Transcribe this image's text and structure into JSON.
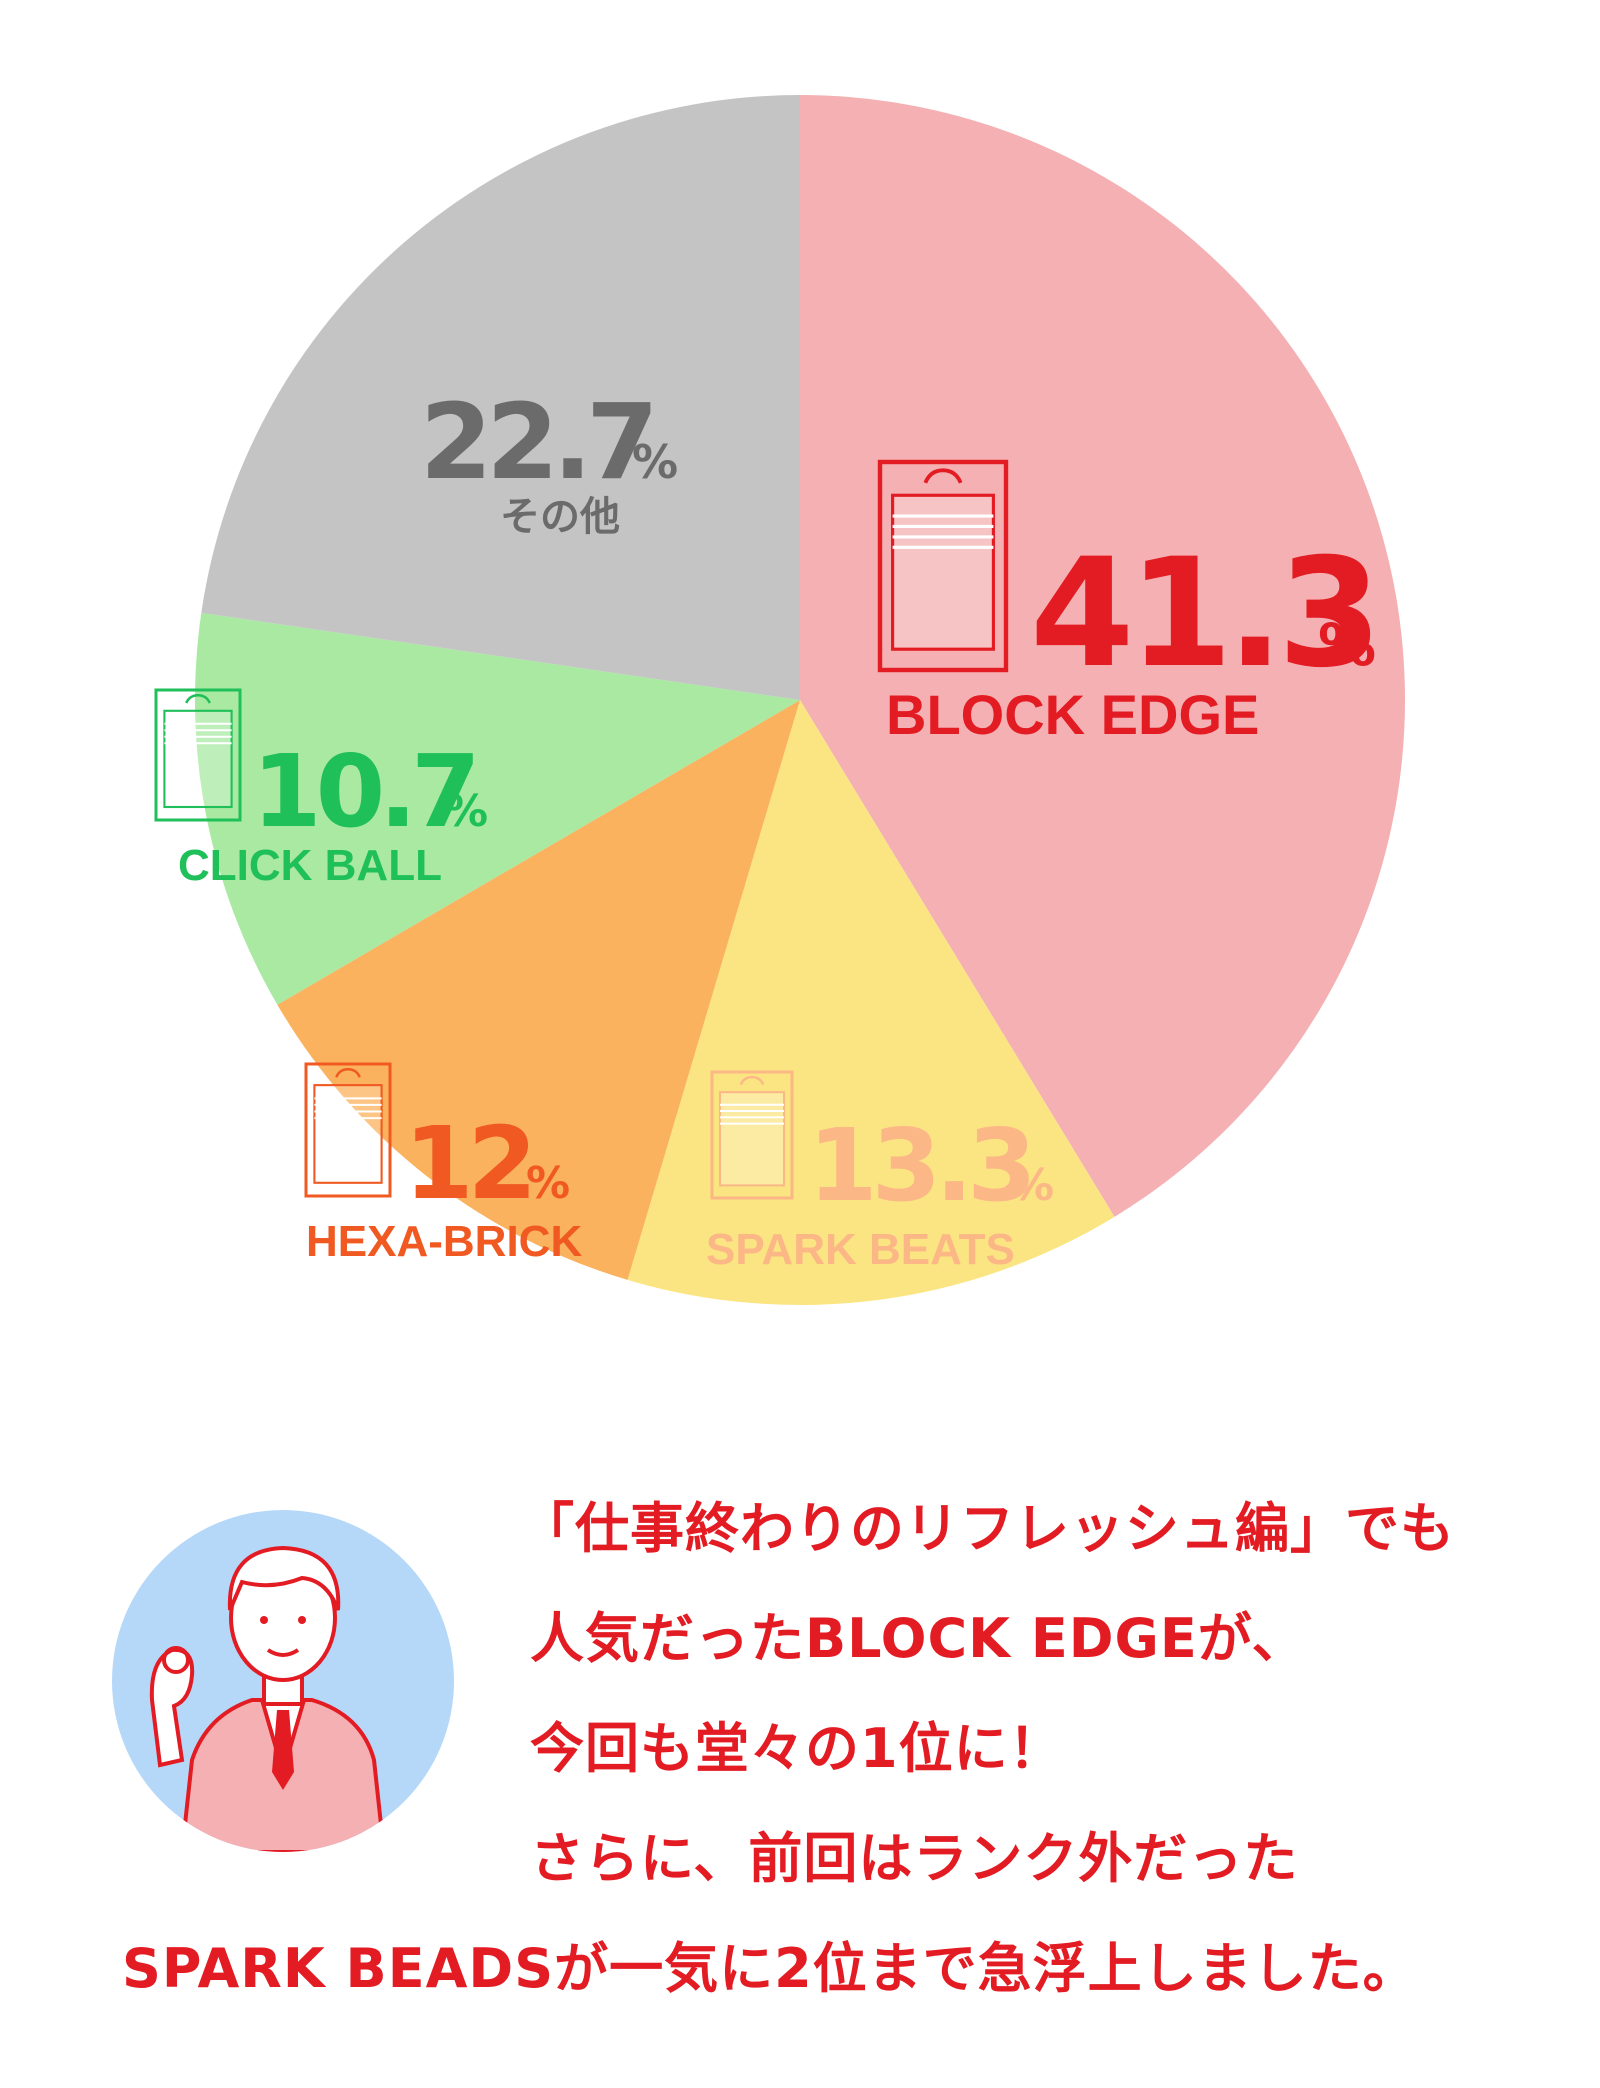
{
  "chart_data": {
    "type": "pie",
    "unit": "%",
    "slices": [
      {
        "label": "BLOCK EDGE",
        "value": "41.3",
        "color": "#f4b0b3",
        "label_color": "#e31b23",
        "icon": "package-icon"
      },
      {
        "label": "SPARK BEATS",
        "value": "13.3",
        "color": "#fbe583",
        "label_color": "#fbb786",
        "icon": "package-icon"
      },
      {
        "label": "HEXA-BRICK",
        "value": "12",
        "color": "#fbb25e",
        "label_color": "#f05a22",
        "icon": "package-icon"
      },
      {
        "label": "CLICK BALL",
        "value": "10.7",
        "color": "#a9e9a2",
        "label_color": "#1fbf5a",
        "icon": "package-icon"
      },
      {
        "label": "その他",
        "value": "22.7",
        "color": "#c4c4c4",
        "label_color": "#6b6b6b",
        "icon": null
      }
    ]
  },
  "caption": {
    "lines": [
      "「仕事終わりのリフレッシュ編」でも",
      "人気だったBLOCK EDGEが、",
      "今回も堂々の1位に！",
      "さらに、前回はランク外だった",
      "SPARK BEADSが一気に2位まで急浮上しました。"
    ],
    "color": "#e31b23"
  },
  "avatar": {
    "icon": "businessman-icon",
    "background": "#b5d8f9"
  }
}
